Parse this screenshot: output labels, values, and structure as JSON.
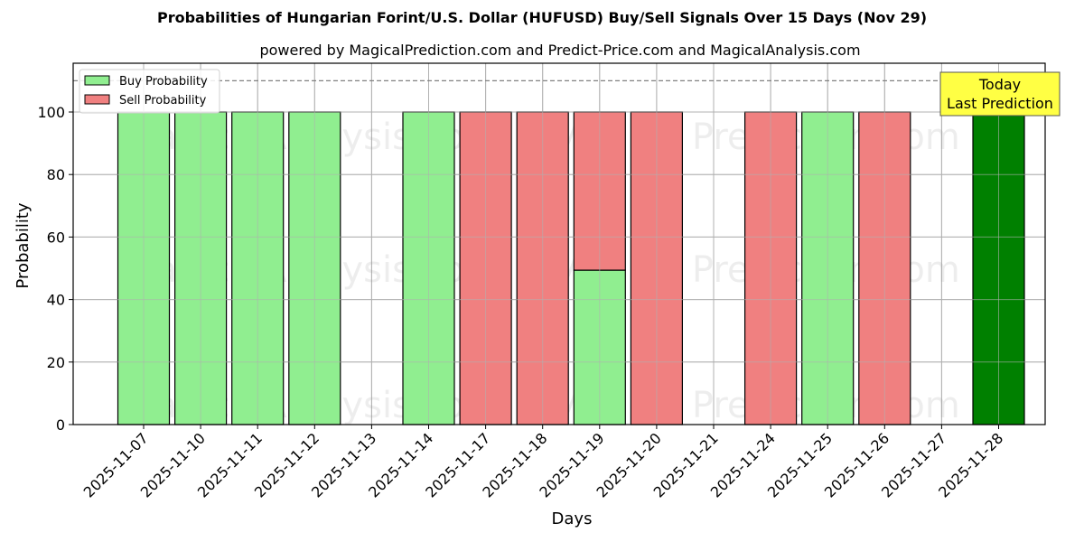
{
  "title": "Probabilities of Hungarian Forint/U.S. Dollar (HUFUSD) Buy/Sell Signals Over 15 Days (Nov 29)",
  "subtitle": "powered by MagicalPrediction.com and Predict-Price.com and MagicalAnalysis.com",
  "legend": {
    "buy": "Buy Probability",
    "sell": "Sell Probability"
  },
  "annotation": {
    "line1": "Today",
    "line2": "Last Prediction"
  },
  "watermarks": [
    "MagicalAnalysis.com",
    "MagicalPrediction.com"
  ],
  "colors": {
    "buy": "#90ee90",
    "sell": "#f08080",
    "today": "#008000",
    "annotation_bg": "#ffff44"
  },
  "chart_data": {
    "type": "bar",
    "stacked": true,
    "title": "Probabilities of Hungarian Forint/U.S. Dollar (HUFUSD) Buy/Sell Signals Over 15 Days (Nov 29)",
    "subtitle": "powered by MagicalPrediction.com and Predict-Price.com and MagicalAnalysis.com",
    "xlabel": "Days",
    "ylabel": "Probability",
    "ylim": [
      0,
      115
    ],
    "yticks": [
      0,
      20,
      40,
      60,
      80,
      100
    ],
    "grid": true,
    "legend_position": "upper left",
    "reference_line": {
      "y": 110,
      "style": "dashed"
    },
    "categories": [
      "2025-11-07",
      "2025-11-10",
      "2025-11-11",
      "2025-11-12",
      "2025-11-13",
      "2025-11-14",
      "2025-11-17",
      "2025-11-18",
      "2025-11-19",
      "2025-11-20",
      "2025-11-21",
      "2025-11-24",
      "2025-11-25",
      "2025-11-26",
      "2025-11-27",
      "2025-11-28"
    ],
    "series": [
      {
        "name": "Buy Probability",
        "values": [
          100,
          100,
          100,
          100,
          0,
          100,
          0,
          0,
          49.4,
          0,
          0,
          0,
          100,
          0,
          0,
          100
        ]
      },
      {
        "name": "Sell Probability",
        "values": [
          0,
          0,
          0,
          0,
          0,
          0,
          100,
          100,
          50.6,
          100,
          0,
          100,
          0,
          100,
          0,
          0
        ]
      }
    ],
    "highlight": {
      "category": "2025-11-28",
      "label": "Today Last Prediction",
      "color": "#008000"
    }
  }
}
